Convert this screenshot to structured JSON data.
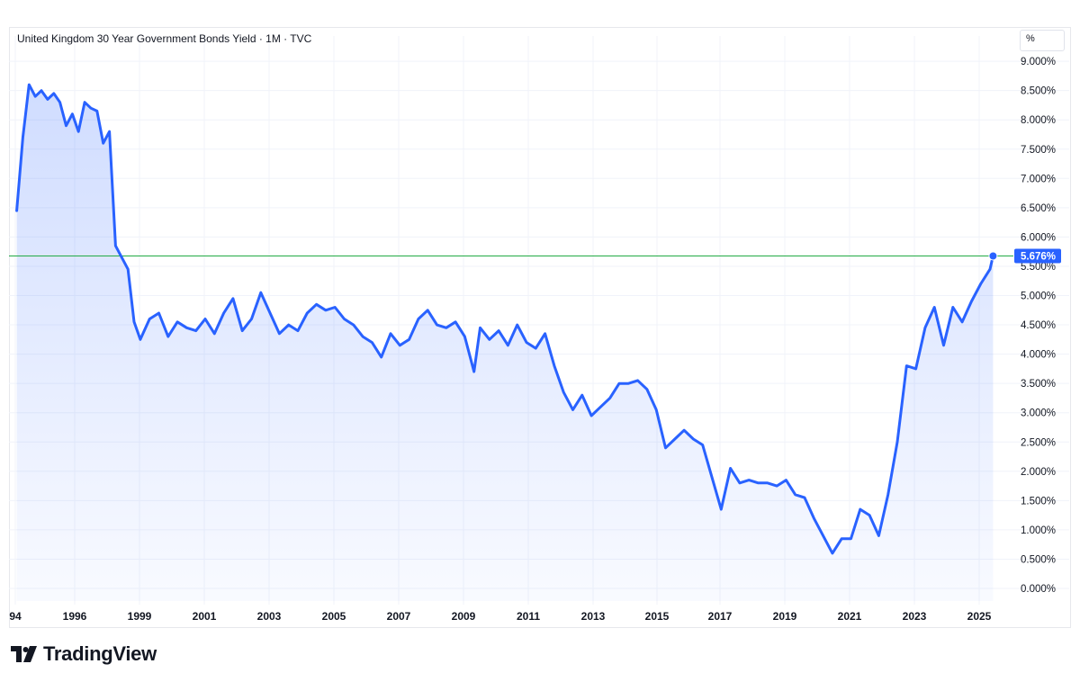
{
  "header": {
    "title": "United Kingdom 30 Year Government Bonds Yield · 1M · TVC",
    "unit_label": "%"
  },
  "branding": {
    "logo_text": "TradingView"
  },
  "colors": {
    "line": "#2962ff",
    "area_top": "#2962ff",
    "reference_line": "#22ab45",
    "price_badge": "#2962ff",
    "grid": "#f0f3fa"
  },
  "chart_data": {
    "type": "area",
    "title": "United Kingdom 30 Year Government Bonds Yield · 1M · TVC",
    "xlabel": "",
    "ylabel": "",
    "ylim": [
      -0.2,
      9.2
    ],
    "y_ticks": [
      "0.000%",
      "0.500%",
      "1.000%",
      "1.500%",
      "2.000%",
      "2.500%",
      "3.000%",
      "3.500%",
      "4.000%",
      "4.500%",
      "5.000%",
      "5.500%",
      "6.000%",
      "6.500%",
      "7.000%",
      "7.500%",
      "8.000%",
      "8.500%",
      "9.000%"
    ],
    "x_ticks": [
      "94",
      "1996",
      "1999",
      "2001",
      "2003",
      "2005",
      "2007",
      "2009",
      "2011",
      "2013",
      "2015",
      "2017",
      "2019",
      "2021",
      "2023",
      "2025"
    ],
    "last_value_label": "5.676%",
    "last_value": 5.676,
    "grid": true,
    "series": [
      {
        "x": [
          1994.0,
          1994.2,
          1994.4,
          1994.6,
          1994.8,
          1995.0,
          1995.2,
          1995.4,
          1995.6,
          1995.8,
          1996.0,
          1996.2,
          1996.4,
          1996.6,
          1996.8,
          1997.0,
          1997.2,
          1997.4,
          1997.6,
          1997.8,
          1998.0,
          1998.3,
          1998.6,
          1998.9,
          1999.2,
          1999.5,
          1999.8,
          2000.1,
          2000.4,
          2000.7,
          2001.0,
          2001.3,
          2001.6,
          2001.9,
          2002.2,
          2002.5,
          2002.8,
          2003.1,
          2003.4,
          2003.7,
          2004.0,
          2004.3,
          2004.6,
          2004.9,
          2005.2,
          2005.5,
          2005.8,
          2006.1,
          2006.4,
          2006.7,
          2007.0,
          2007.3,
          2007.6,
          2007.9,
          2008.2,
          2008.5,
          2008.8,
          2009.0,
          2009.3,
          2009.6,
          2009.9,
          2010.2,
          2010.5,
          2010.8,
          2011.1,
          2011.4,
          2011.7,
          2012.0,
          2012.3,
          2012.6,
          2012.9,
          2013.2,
          2013.5,
          2013.8,
          2014.1,
          2014.4,
          2014.7,
          2015.0,
          2015.3,
          2015.6,
          2015.9,
          2016.2,
          2016.5,
          2016.8,
          2017.1,
          2017.4,
          2017.7,
          2018.0,
          2018.3,
          2018.6,
          2018.9,
          2019.2,
          2019.5,
          2019.8,
          2020.1,
          2020.4,
          2020.7,
          2021.0,
          2021.3,
          2021.6,
          2021.9,
          2022.2,
          2022.5,
          2022.8,
          2023.1,
          2023.4,
          2023.7,
          2024.0,
          2024.3,
          2024.6,
          2024.9,
          2025.2,
          2025.5,
          2025.6
        ],
        "y": [
          6.45,
          7.7,
          8.6,
          8.4,
          8.5,
          8.35,
          8.45,
          8.3,
          7.9,
          8.1,
          7.8,
          8.3,
          8.2,
          8.15,
          7.6,
          7.8,
          5.85,
          5.65,
          5.45,
          4.55,
          4.25,
          4.6,
          4.7,
          4.3,
          4.55,
          4.45,
          4.4,
          4.6,
          4.35,
          4.7,
          4.95,
          4.4,
          4.6,
          5.05,
          4.7,
          4.35,
          4.5,
          4.4,
          4.7,
          4.85,
          4.75,
          4.8,
          4.6,
          4.5,
          4.3,
          4.2,
          3.95,
          4.35,
          4.15,
          4.25,
          4.6,
          4.75,
          4.5,
          4.45,
          4.55,
          4.3,
          3.7,
          4.45,
          4.25,
          4.4,
          4.15,
          4.5,
          4.2,
          4.1,
          4.35,
          3.8,
          3.35,
          3.05,
          3.3,
          2.95,
          3.1,
          3.25,
          3.5,
          3.5,
          3.55,
          3.4,
          3.05,
          2.4,
          2.55,
          2.7,
          2.55,
          2.45,
          1.9,
          1.35,
          2.05,
          1.8,
          1.85,
          1.8,
          1.8,
          1.75,
          1.85,
          1.6,
          1.55,
          1.2,
          0.9,
          0.6,
          0.85,
          0.85,
          1.35,
          1.25,
          0.9,
          1.6,
          2.5,
          3.8,
          3.75,
          4.45,
          4.8,
          4.15,
          4.8,
          4.55,
          4.9,
          5.2,
          5.45,
          5.676
        ]
      }
    ]
  }
}
